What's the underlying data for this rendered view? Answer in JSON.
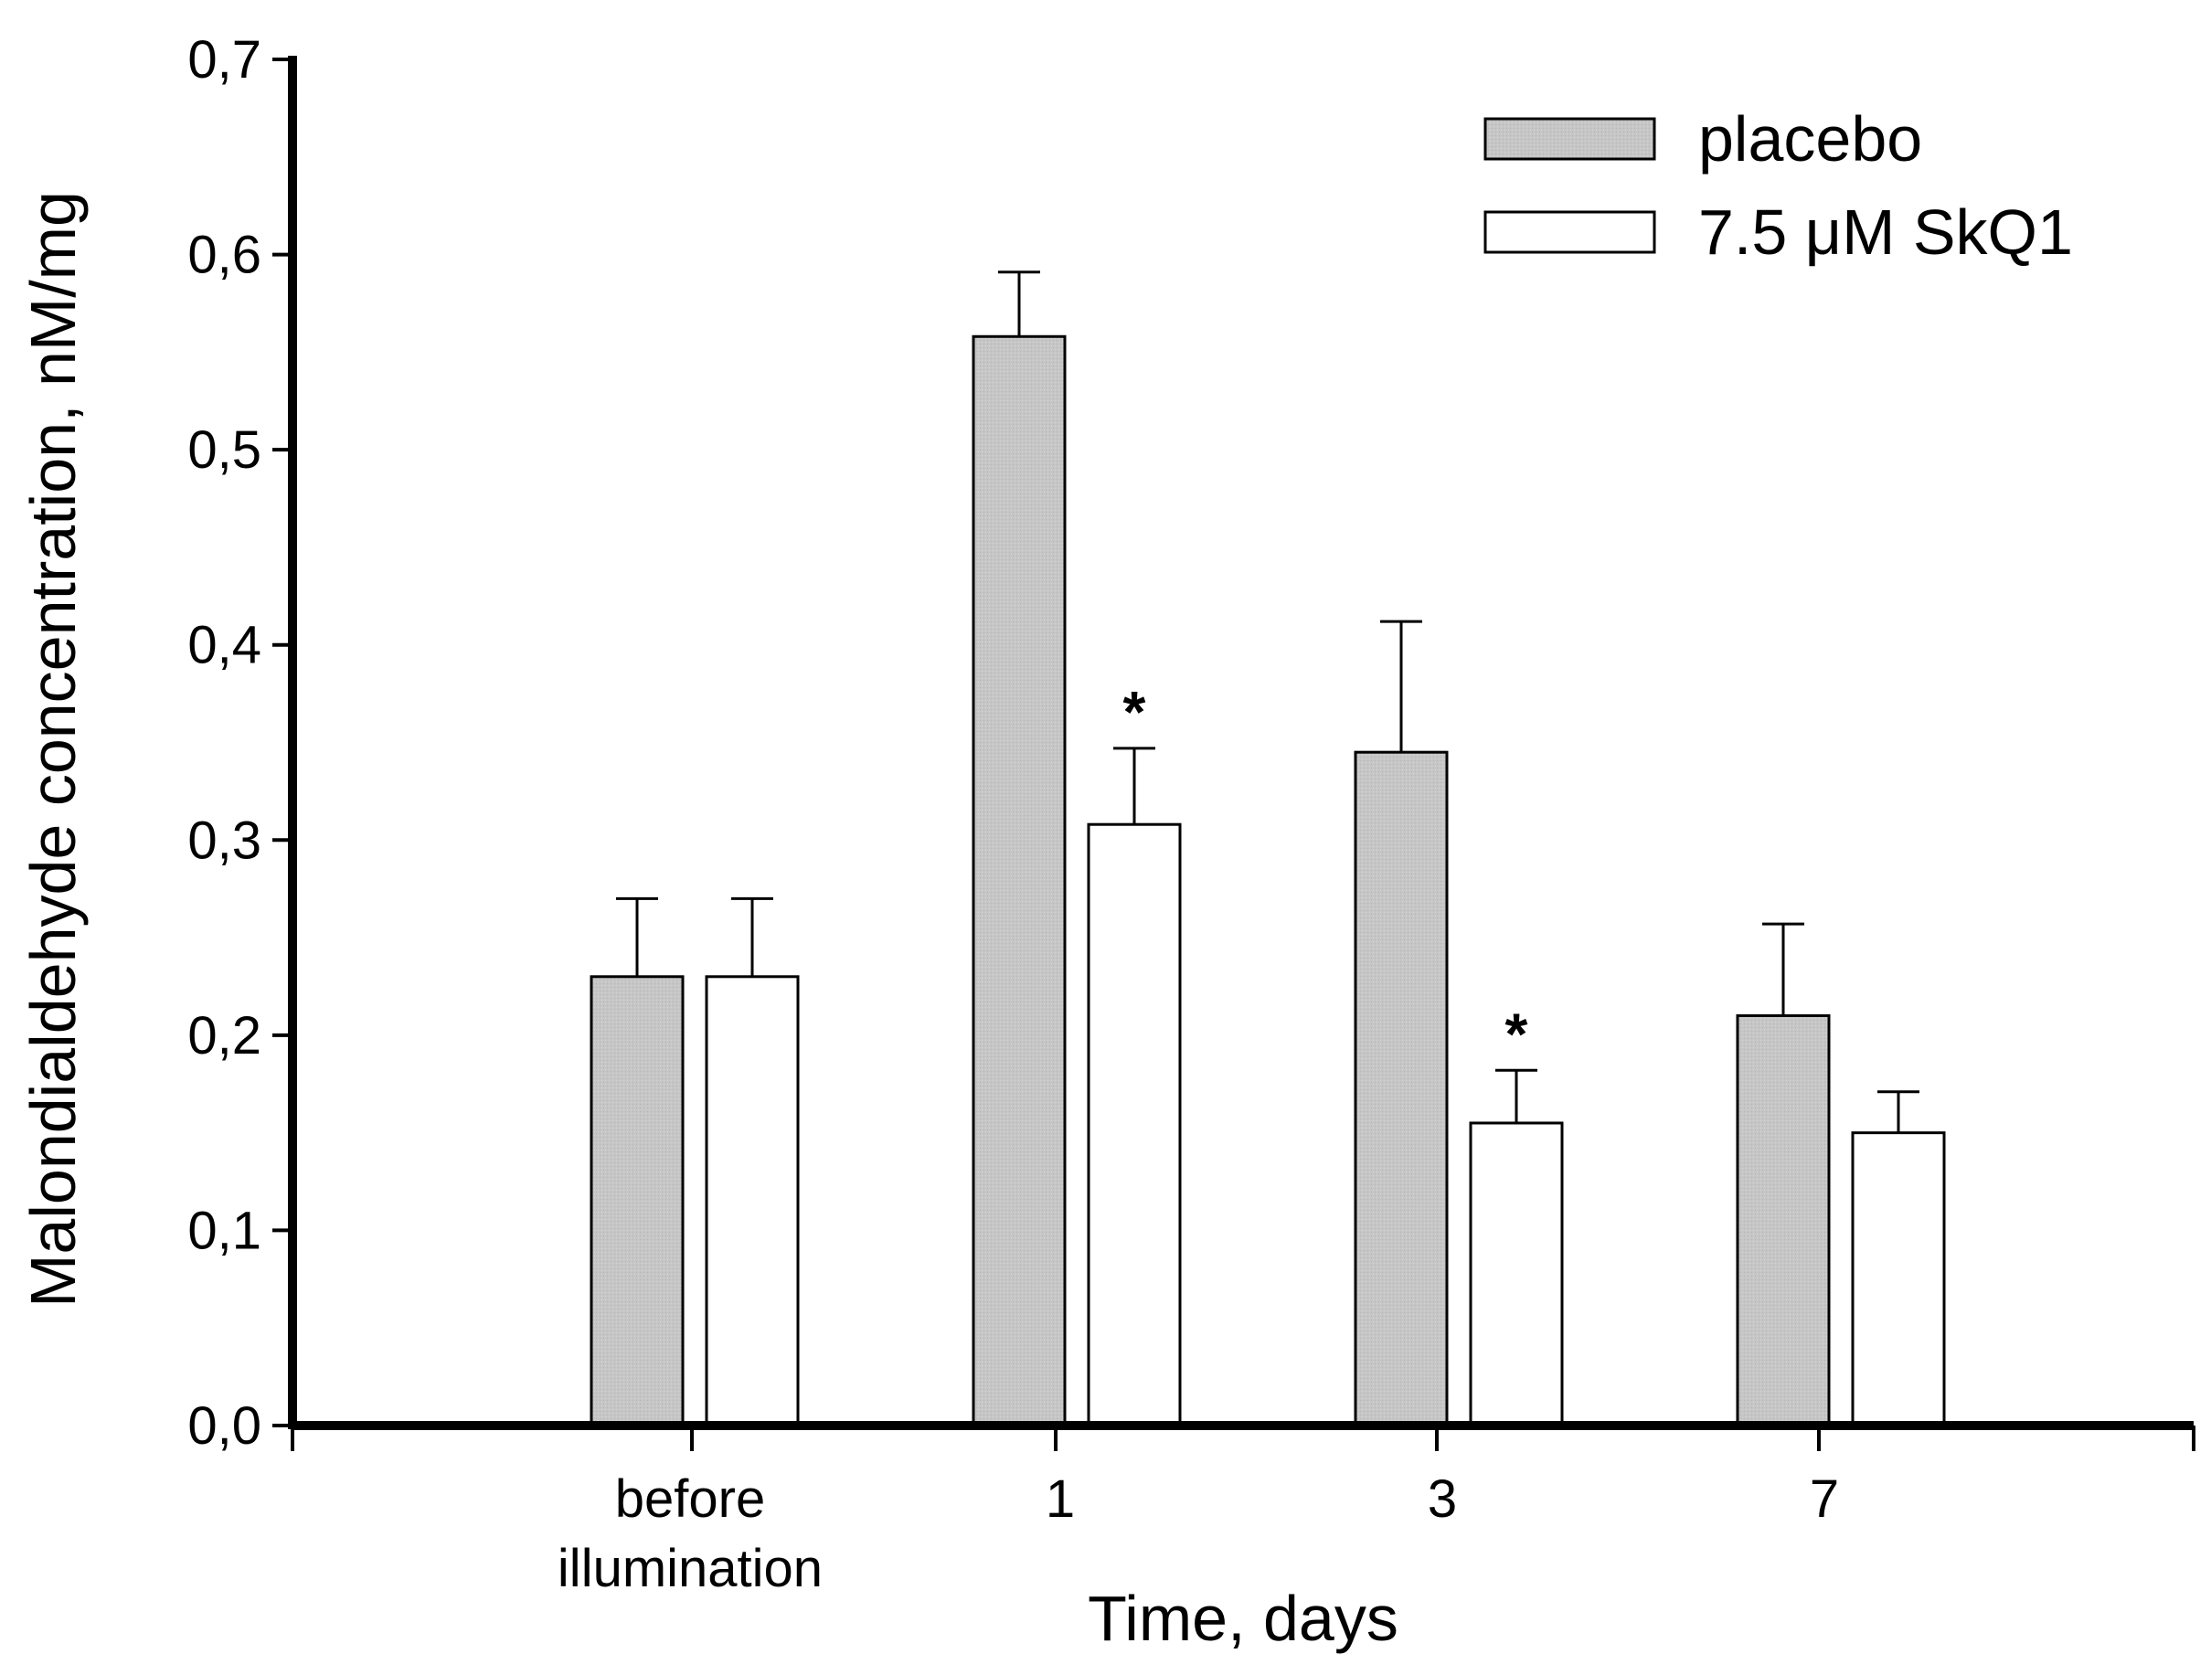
{
  "chart_data": {
    "type": "bar",
    "xlabel": "Time, days",
    "ylabel": "Malondialdehyde concentration, nM/mg",
    "ylim": [
      0,
      0.7
    ],
    "yticks": [
      "0,0",
      "0,1",
      "0,2",
      "0,3",
      "0,4",
      "0,5",
      "0,6",
      "0,7"
    ],
    "categories": [
      {
        "lines": [
          "before",
          "illumination"
        ]
      },
      {
        "lines": [
          "1"
        ]
      },
      {
        "lines": [
          "3"
        ]
      },
      {
        "lines": [
          "7"
        ]
      }
    ],
    "series": [
      {
        "name": "placebo",
        "color": "#c8c8c8",
        "values": [
          0.23,
          0.558,
          0.345,
          0.21
        ],
        "errors": [
          0.04,
          0.033,
          0.067,
          0.047
        ],
        "significance": [
          "",
          "",
          "",
          ""
        ]
      },
      {
        "name": "7.5 μM SkQ1",
        "color": "#ffffff",
        "values": [
          0.23,
          0.308,
          0.155,
          0.15
        ],
        "errors": [
          0.04,
          0.039,
          0.027,
          0.021
        ],
        "significance": [
          "",
          "*",
          "*",
          ""
        ]
      }
    ],
    "legend_position": "top-right"
  }
}
